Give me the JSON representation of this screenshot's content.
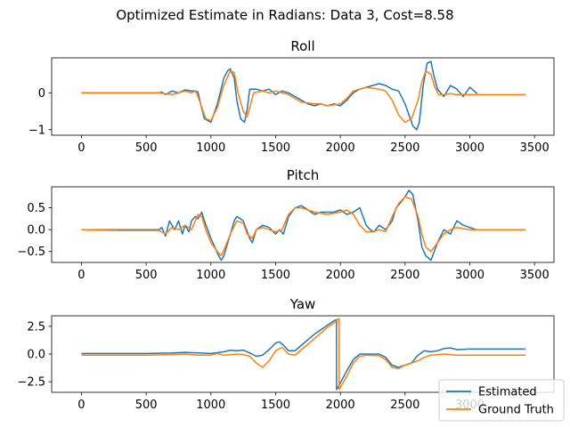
{
  "chart_data": {
    "type": "line",
    "suptitle": "Optimized Estimate in Radians: Data 3, Cost=8.58",
    "colors": {
      "Estimated": "#1f77b4",
      "Ground Truth": "#ff7f0e"
    },
    "legend": {
      "entries": [
        "Estimated",
        "Ground Truth"
      ],
      "placement": "lower-right"
    },
    "grid": false,
    "panels": [
      {
        "title": "Roll",
        "xlim": [
          -230,
          3650
        ],
        "ylim": [
          -1.15,
          0.95
        ],
        "xticks": [
          "0",
          "500",
          "1000",
          "1500",
          "2000",
          "2500",
          "3000",
          "3500"
        ],
        "xtick_values": [
          0,
          500,
          1000,
          1500,
          2000,
          2500,
          3000,
          3500
        ],
        "yticks": [
          "−1",
          "0"
        ],
        "ytick_values": [
          -1,
          0
        ],
        "series": [
          {
            "name": "Estimated",
            "x": [
              0,
              300,
              600,
              620,
              650,
              700,
              750,
              800,
              850,
              880,
              900,
              920,
              950,
              1000,
              1050,
              1100,
              1130,
              1150,
              1180,
              1200,
              1230,
              1260,
              1280,
              1300,
              1350,
              1400,
              1450,
              1500,
              1550,
              1600,
              1650,
              1700,
              1750,
              1800,
              1850,
              1900,
              1950,
              2000,
              2050,
              2100,
              2150,
              2200,
              2250,
              2300,
              2350,
              2400,
              2450,
              2500,
              2530,
              2560,
              2590,
              2610,
              2640,
              2670,
              2700,
              2720,
              2750,
              2800,
              2850,
              2900,
              2950,
              3000,
              3050,
              3060
            ],
            "y": [
              0,
              0,
              0,
              0.02,
              -0.05,
              0.05,
              0,
              0.08,
              0.05,
              0.05,
              0.02,
              -0.3,
              -0.7,
              -0.8,
              -0.3,
              0.4,
              0.6,
              0.65,
              0.4,
              -0.2,
              -0.7,
              -0.8,
              -0.45,
              0.1,
              0.1,
              0.05,
              0.1,
              -0.05,
              0.05,
              0,
              -0.1,
              -0.2,
              -0.3,
              -0.35,
              -0.3,
              -0.35,
              -0.3,
              -0.35,
              -0.2,
              0,
              0.1,
              0.15,
              0.2,
              0.25,
              0.2,
              0.1,
              0.05,
              -0.3,
              -0.6,
              -0.9,
              -1.0,
              -0.8,
              0.2,
              0.8,
              0.85,
              0.5,
              0.1,
              -0.1,
              0.2,
              0.1,
              -0.1,
              0.15,
              0,
              0
            ]
          },
          {
            "name": "Ground Truth",
            "x": [
              0,
              600,
              700,
              750,
              800,
              850,
              880,
              900,
              930,
              960,
              1000,
              1050,
              1100,
              1150,
              1180,
              1210,
              1250,
              1280,
              1300,
              1330,
              1400,
              1450,
              1500,
              1600,
              1650,
              1700,
              1800,
              1850,
              1900,
              2000,
              2050,
              2100,
              2200,
              2300,
              2350,
              2400,
              2450,
              2500,
              2550,
              2600,
              2630,
              2660,
              2700,
              2730,
              2760,
              2800,
              2850,
              2900,
              3000,
              3100,
              3200,
              3300,
              3430
            ],
            "y": [
              0,
              0,
              -0.05,
              0,
              0.05,
              0,
              0.05,
              -0.1,
              -0.4,
              -0.7,
              -0.75,
              -0.4,
              0.2,
              0.6,
              0.55,
              0,
              -0.5,
              -0.65,
              -0.4,
              0,
              0.05,
              0,
              0.05,
              -0.05,
              -0.15,
              -0.25,
              -0.3,
              -0.3,
              -0.35,
              -0.3,
              -0.15,
              0.05,
              0.15,
              0.1,
              0.05,
              -0.2,
              -0.6,
              -0.8,
              -0.7,
              -0.2,
              0.3,
              0.6,
              0.5,
              0.15,
              -0.05,
              -0.05,
              -0.02,
              -0.05,
              -0.05,
              -0.05,
              -0.05,
              -0.05,
              -0.05
            ]
          }
        ]
      },
      {
        "title": "Pitch",
        "xlim": [
          -230,
          3650
        ],
        "ylim": [
          -0.75,
          0.98
        ],
        "xticks": [
          "0",
          "500",
          "1000",
          "1500",
          "2000",
          "2500",
          "3000",
          "3500"
        ],
        "xtick_values": [
          0,
          500,
          1000,
          1500,
          2000,
          2500,
          3000,
          3500
        ],
        "yticks": [
          "−0.5",
          "0.0",
          "0.5"
        ],
        "ytick_values": [
          -0.5,
          0,
          0.5
        ],
        "series": [
          {
            "name": "Estimated",
            "x": [
              0,
              600,
              620,
              650,
              680,
              700,
              720,
              750,
              780,
              800,
              830,
              850,
              880,
              900,
              930,
              950,
              1000,
              1030,
              1060,
              1080,
              1100,
              1130,
              1160,
              1180,
              1200,
              1250,
              1300,
              1320,
              1350,
              1400,
              1450,
              1500,
              1530,
              1560,
              1600,
              1650,
              1700,
              1750,
              1800,
              1850,
              1900,
              1950,
              2000,
              2050,
              2100,
              2150,
              2200,
              2230,
              2260,
              2300,
              2350,
              2400,
              2430,
              2460,
              2500,
              2530,
              2560,
              2600,
              2630,
              2660,
              2700,
              2750,
              2800,
              2850,
              2900,
              2950,
              3000,
              3050,
              3060
            ],
            "y": [
              0,
              0,
              0.05,
              -0.15,
              0.2,
              0.1,
              0.0,
              0.2,
              -0.1,
              0.1,
              -0.05,
              0.2,
              0.3,
              0.25,
              0.4,
              0.2,
              -0.2,
              -0.4,
              -0.6,
              -0.7,
              -0.6,
              -0.3,
              0,
              0.2,
              0.3,
              0.2,
              -0.2,
              -0.3,
              0,
              0.1,
              0.05,
              -0.1,
              0,
              -0.1,
              0.3,
              0.5,
              0.55,
              0.45,
              0.35,
              0.4,
              0.4,
              0.4,
              0.45,
              0.35,
              0.4,
              0.5,
              0.1,
              0,
              -0.05,
              0.1,
              0,
              0.2,
              0.5,
              0.6,
              0.75,
              0.9,
              0.8,
              0.2,
              -0.4,
              -0.6,
              -0.7,
              -0.3,
              0,
              -0.1,
              0.2,
              0.1,
              0.05,
              0,
              0
            ]
          },
          {
            "name": "Ground Truth",
            "x": [
              0,
              300,
              600,
              650,
              700,
              750,
              800,
              850,
              880,
              900,
              930,
              960,
              1000,
              1050,
              1080,
              1110,
              1150,
              1200,
              1250,
              1280,
              1320,
              1350,
              1400,
              1450,
              1500,
              1550,
              1600,
              1650,
              1700,
              1800,
              1900,
              2000,
              2050,
              2100,
              2150,
              2200,
              2250,
              2300,
              2350,
              2400,
              2450,
              2500,
              2550,
              2600,
              2630,
              2660,
              2700,
              2750,
              2800,
              2850,
              2900,
              3000,
              3200,
              3430
            ],
            "y": [
              0,
              -0.02,
              -0.02,
              -0.1,
              0.05,
              0,
              0.1,
              0,
              0.2,
              0.35,
              0.3,
              0,
              -0.3,
              -0.5,
              -0.6,
              -0.4,
              -0.1,
              0.2,
              0.15,
              -0.1,
              -0.2,
              0,
              0.05,
              0,
              -0.05,
              0,
              0.35,
              0.5,
              0.5,
              0.4,
              0.35,
              0.4,
              0.45,
              0.35,
              0.1,
              -0.05,
              -0.05,
              0,
              -0.05,
              0.3,
              0.6,
              0.75,
              0.7,
              0.3,
              -0.1,
              -0.4,
              -0.5,
              -0.3,
              -0.1,
              0,
              0.05,
              0,
              0,
              0
            ]
          }
        ]
      },
      {
        "title": "Yaw",
        "xlim": [
          -230,
          3650
        ],
        "ylim": [
          -3.45,
          3.45
        ],
        "xticks": [
          "0",
          "500",
          "1000",
          "1500",
          "2000",
          "2500",
          "3000"
        ],
        "xtick_values": [
          0,
          500,
          1000,
          1500,
          2000,
          2500,
          3000
        ],
        "yticks": [
          "−2.5",
          "0.0",
          "2.5"
        ],
        "ytick_values": [
          -2.5,
          0,
          2.5
        ],
        "series": [
          {
            "name": "Estimated",
            "x": [
              0,
              500,
              700,
              800,
              900,
              1000,
              1100,
              1150,
              1200,
              1250,
              1300,
              1350,
              1400,
              1450,
              1500,
              1530,
              1560,
              1600,
              1650,
              1700,
              1750,
              1800,
              1850,
              1900,
              1950,
              1970,
              1971,
              2000,
              2050,
              2100,
              2150,
              2200,
              2300,
              2350,
              2400,
              2450,
              2500,
              2550,
              2600,
              2650,
              2700,
              2750,
              2800,
              2850,
              2900,
              3000,
              3100,
              3200,
              3300,
              3430
            ],
            "y": [
              0.05,
              0.05,
              0.1,
              0.15,
              0.1,
              0.05,
              0.2,
              0.35,
              0.3,
              0.35,
              0.1,
              -0.2,
              -0.1,
              0.4,
              1.0,
              1.1,
              0.8,
              0.3,
              0.3,
              0.8,
              1.3,
              1.8,
              2.2,
              2.6,
              3.0,
              3.1,
              -3.2,
              -2.6,
              -1.5,
              -0.5,
              0,
              0,
              0,
              -0.3,
              -1.0,
              -1.2,
              -1.0,
              -0.8,
              -0.1,
              0.3,
              0.2,
              0.3,
              0.5,
              0.55,
              0.4,
              0.45,
              0.45,
              0.45,
              0.45,
              0.45
            ]
          },
          {
            "name": "Ground Truth",
            "x": [
              0,
              500,
              700,
              800,
              900,
              1000,
              1050,
              1100,
              1200,
              1250,
              1300,
              1350,
              1400,
              1450,
              1500,
              1550,
              1600,
              1650,
              1700,
              1750,
              1800,
              1850,
              1900,
              1950,
              1990,
              1991,
              2050,
              2100,
              2150,
              2200,
              2300,
              2350,
              2400,
              2450,
              2500,
              2550,
              2600,
              2650,
              2700,
              2800,
              2900,
              3000,
              3100,
              3200,
              3300,
              3430
            ],
            "y": [
              -0.1,
              -0.1,
              -0.05,
              0,
              -0.1,
              -0.1,
              0.05,
              -0.1,
              0,
              -0.05,
              -0.2,
              -0.8,
              -1.2,
              -0.6,
              0.3,
              0.6,
              0,
              -0.1,
              0.4,
              0.9,
              1.4,
              1.9,
              2.4,
              2.8,
              3.2,
              -3.2,
              -2.0,
              -0.8,
              -0.2,
              -0.1,
              -0.15,
              -0.5,
              -1.2,
              -1.3,
              -1.0,
              -0.8,
              -0.6,
              -0.3,
              -0.1,
              0,
              -0.1,
              -0.1,
              -0.1,
              -0.1,
              -0.1,
              -0.1
            ]
          }
        ]
      }
    ]
  }
}
